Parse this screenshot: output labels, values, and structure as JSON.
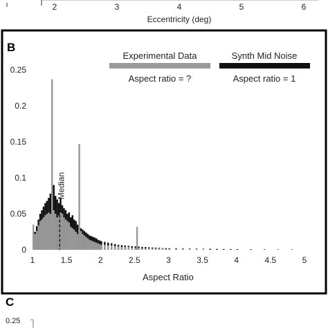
{
  "panel_a": {
    "xlabel": "Eccentricity (deg)",
    "tick_labels": [
      "2",
      "3",
      "4",
      "5",
      "6"
    ]
  },
  "panel_b": {
    "label": "B",
    "legend_experimental_title": "Experimental Data",
    "legend_experimental_sub": "Aspect ratio = ?",
    "legend_synth_title": "Synth Mid Noise",
    "legend_synth_sub": "Aspect ratio = 1",
    "median_label": "Median",
    "xlabel": "Aspect Ratio",
    "colors": {
      "experimental": "#999999",
      "synth": "#111111",
      "frame": "#000000"
    }
  },
  "panel_c": {
    "label": "C",
    "tick_label": "0.25"
  },
  "chart_data": {
    "type": "bar",
    "xlabel": "Aspect Ratio",
    "ylabel": "",
    "xlim": [
      1,
      5
    ],
    "ylim": [
      0,
      0.25
    ],
    "x_ticks": [
      1,
      1.5,
      2,
      2.5,
      3,
      3.5,
      4,
      4.5,
      5
    ],
    "x_tick_labels": [
      "1",
      "1.5",
      "2",
      "2.5",
      "3",
      "3.5",
      "4",
      "4.5",
      "5"
    ],
    "y_ticks": [
      0,
      0.05,
      0.1,
      0.15,
      0.2,
      0.25
    ],
    "y_tick_labels": [
      "0",
      "0.05",
      "0.1",
      "0.15",
      "0.2",
      "0.25"
    ],
    "median_x": 1.4,
    "series": [
      {
        "name": "Synth Mid Noise",
        "bin_width": 0.025,
        "x": [
          1.0,
          1.025,
          1.05,
          1.075,
          1.1,
          1.125,
          1.15,
          1.175,
          1.2,
          1.225,
          1.25,
          1.275,
          1.3,
          1.325,
          1.35,
          1.375,
          1.4,
          1.425,
          1.45,
          1.475,
          1.5,
          1.525,
          1.55,
          1.575,
          1.6,
          1.625,
          1.65,
          1.675,
          1.7,
          1.725,
          1.75,
          1.775,
          1.8,
          1.825,
          1.85,
          1.875,
          1.9,
          1.925,
          1.95,
          1.975,
          2.0,
          2.05,
          2.1,
          2.15,
          2.2,
          2.25,
          2.3,
          2.35,
          2.4,
          2.45,
          2.5,
          2.55,
          2.6,
          2.65,
          2.7,
          2.75,
          2.8,
          2.85,
          2.9,
          2.95,
          3.0,
          3.1,
          3.2,
          3.3,
          3.4,
          3.5,
          3.6,
          3.7,
          3.8,
          3.9,
          4.0,
          4.2,
          4.4,
          4.6,
          4.8
        ],
        "values": [
          0.02,
          0.025,
          0.033,
          0.042,
          0.05,
          0.055,
          0.06,
          0.065,
          0.068,
          0.072,
          0.078,
          0.082,
          0.09,
          0.075,
          0.07,
          0.065,
          0.072,
          0.062,
          0.058,
          0.055,
          0.05,
          0.052,
          0.045,
          0.048,
          0.042,
          0.04,
          0.035,
          0.032,
          0.03,
          0.028,
          0.026,
          0.024,
          0.022,
          0.02,
          0.019,
          0.018,
          0.017,
          0.016,
          0.014,
          0.013,
          0.012,
          0.011,
          0.01,
          0.009,
          0.008,
          0.007,
          0.0065,
          0.006,
          0.0055,
          0.005,
          0.0048,
          0.0045,
          0.004,
          0.0038,
          0.0035,
          0.0032,
          0.003,
          0.0028,
          0.0025,
          0.0022,
          0.002,
          0.0019,
          0.0018,
          0.0017,
          0.0016,
          0.0015,
          0.0014,
          0.0012,
          0.001,
          0.001,
          0.0009,
          0.0008,
          0.0007,
          0.0006,
          0.0005
        ]
      },
      {
        "name": "Experimental Data",
        "bin_width": 0.025,
        "x": [
          1.0,
          1.025,
          1.05,
          1.075,
          1.1,
          1.125,
          1.15,
          1.175,
          1.2,
          1.225,
          1.25,
          1.275,
          1.3,
          1.325,
          1.35,
          1.375,
          1.4,
          1.425,
          1.45,
          1.475,
          1.5,
          1.525,
          1.55,
          1.575,
          1.6,
          1.625,
          1.65,
          1.675,
          1.7,
          1.725,
          1.75,
          1.775,
          1.8,
          1.825,
          1.85,
          1.875,
          1.9,
          1.925,
          1.95,
          1.975,
          2.0,
          2.05,
          2.1,
          2.15,
          2.2,
          2.25,
          2.3,
          2.35,
          2.4,
          2.45,
          2.5,
          2.525,
          2.55,
          2.6,
          2.65,
          2.7,
          2.75,
          2.8,
          2.85,
          2.9,
          2.95,
          3.0,
          3.1,
          3.2,
          3.3,
          3.4,
          3.5
        ],
        "values": [
          0.035,
          0.022,
          0.026,
          0.034,
          0.04,
          0.042,
          0.045,
          0.048,
          0.05,
          0.052,
          0.05,
          0.237,
          0.055,
          0.05,
          0.045,
          0.048,
          0.052,
          0.05,
          0.045,
          0.042,
          0.04,
          0.038,
          0.032,
          0.03,
          0.028,
          0.025,
          0.022,
          0.147,
          0.026,
          0.022,
          0.02,
          0.018,
          0.016,
          0.014,
          0.013,
          0.012,
          0.011,
          0.01,
          0.009,
          0.008,
          0.007,
          0.007,
          0.006,
          0.006,
          0.005,
          0.005,
          0.004,
          0.004,
          0.004,
          0.003,
          0.003,
          0.032,
          0.003,
          0.002,
          0.002,
          0.002,
          0.002,
          0.002,
          0.002,
          0.002,
          0.001,
          0.001,
          0.001,
          0.001,
          0.001,
          0.001,
          0.001
        ]
      }
    ]
  }
}
